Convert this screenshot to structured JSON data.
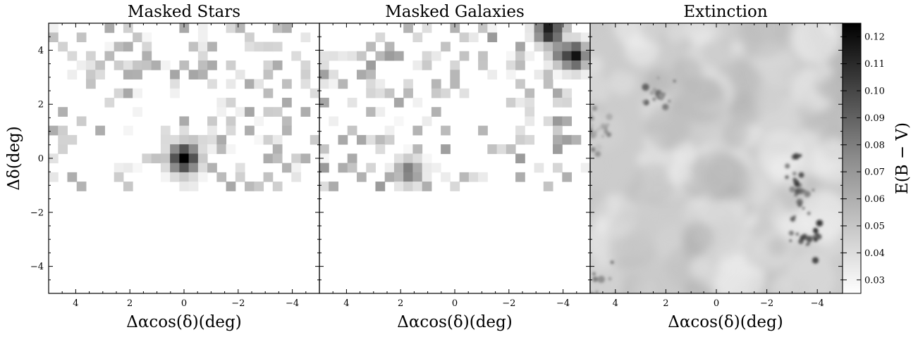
{
  "figure": {
    "colorbar": {
      "label": "E(B − V)",
      "ticks": [
        0.03,
        0.04,
        0.05,
        0.06,
        0.07,
        0.08,
        0.09,
        0.1,
        0.11,
        0.12
      ],
      "tick_labels": [
        "0.03",
        "0.04",
        "0.05",
        "0.06",
        "0.07",
        "0.08",
        "0.09",
        "0.10",
        "0.11",
        "0.12"
      ],
      "range": [
        0.025,
        0.125
      ],
      "colormap": "Greys"
    }
  },
  "chart_data": [
    {
      "type": "heatmap",
      "title": "Masked Stars",
      "xlabel": "Δαcos(δ)(deg)",
      "ylabel": "Δδ(deg)",
      "xlim": [
        5,
        -5
      ],
      "ylim": [
        -5,
        5
      ],
      "xticks": [
        4,
        2,
        0,
        -2,
        -4
      ],
      "xtick_labels": [
        "4",
        "2",
        "0",
        "−2",
        "−4"
      ],
      "yticks": [
        4,
        2,
        0,
        -2,
        -4
      ],
      "ytick_labels": [
        "4",
        "2",
        "0",
        "−2",
        "−4"
      ],
      "colormap": "Greys",
      "bins": 29,
      "data_ylim": [
        -1.3,
        5
      ],
      "features": [
        {
          "type": "peak",
          "x": 0,
          "y": 0,
          "value": 1.0,
          "spread": 0.55
        },
        {
          "type": "scatter_cells",
          "density": 0.28,
          "max_value": 0.35
        }
      ]
    },
    {
      "type": "heatmap",
      "title": "Masked Galaxies",
      "xlabel": "Δαcos(δ)(deg)",
      "xlim": [
        5,
        -5
      ],
      "ylim": [
        -5,
        5
      ],
      "xticks": [
        4,
        2,
        0,
        -2,
        -4
      ],
      "xtick_labels": [
        "4",
        "2",
        "0",
        "−2",
        "−4"
      ],
      "colormap": "Greys",
      "bins": 29,
      "data_ylim": [
        -1.3,
        5
      ],
      "features": [
        {
          "type": "peak",
          "x": -3.5,
          "y": 4.7,
          "value": 0.95
        },
        {
          "type": "peak",
          "x": -4.4,
          "y": 3.8,
          "value": 0.95
        },
        {
          "type": "peak",
          "x": -4.0,
          "y": 3.9,
          "value": 0.6
        },
        {
          "type": "band",
          "x": 1.7,
          "y": -0.5,
          "value": 0.55
        },
        {
          "type": "scatter_cells",
          "density": 0.3,
          "max_value": 0.4
        }
      ]
    },
    {
      "type": "heatmap",
      "title": "Extinction",
      "xlabel": "Δαcos(δ)(deg)",
      "xlim": [
        5,
        -5
      ],
      "ylim": [
        -5,
        5
      ],
      "xticks": [
        4,
        2,
        0,
        -2,
        -4
      ],
      "xtick_labels": [
        "4",
        "2",
        "0",
        "−2",
        "−4"
      ],
      "colormap": "Greys",
      "value_range": [
        0.025,
        0.125
      ],
      "typical_value": 0.045,
      "features": [
        {
          "type": "filament",
          "x": -3.2,
          "y": -0.9,
          "value": 0.11
        },
        {
          "type": "filament",
          "x": -3.5,
          "y": -2.9,
          "value": 0.12
        },
        {
          "type": "filament",
          "x": 2.2,
          "y": 2.3,
          "value": 0.1
        },
        {
          "type": "filament",
          "x": 4.5,
          "y": 1.2,
          "value": 0.085
        },
        {
          "type": "edge_dark",
          "x": 4.5,
          "y": -4.5,
          "value": 0.1
        }
      ]
    }
  ]
}
